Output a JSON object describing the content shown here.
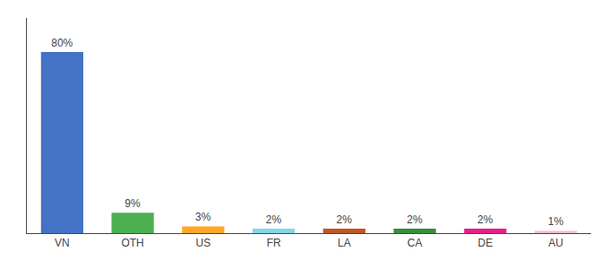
{
  "chart_data": {
    "type": "bar",
    "categories": [
      "VN",
      "OTH",
      "US",
      "FR",
      "LA",
      "CA",
      "DE",
      "AU"
    ],
    "values": [
      80,
      9,
      3,
      2,
      2,
      2,
      2,
      1
    ],
    "value_labels": [
      "80%",
      "9%",
      "3%",
      "2%",
      "2%",
      "2%",
      "2%",
      "1%"
    ],
    "colors": [
      "#4472c4",
      "#4caf50",
      "#ffa726",
      "#80d8e8",
      "#bf5722",
      "#388e3c",
      "#e91e8c",
      "#f8bbd0"
    ],
    "ylim": [
      0,
      95
    ],
    "data_labels": true,
    "tick_labels": "x",
    "grid": false
  }
}
